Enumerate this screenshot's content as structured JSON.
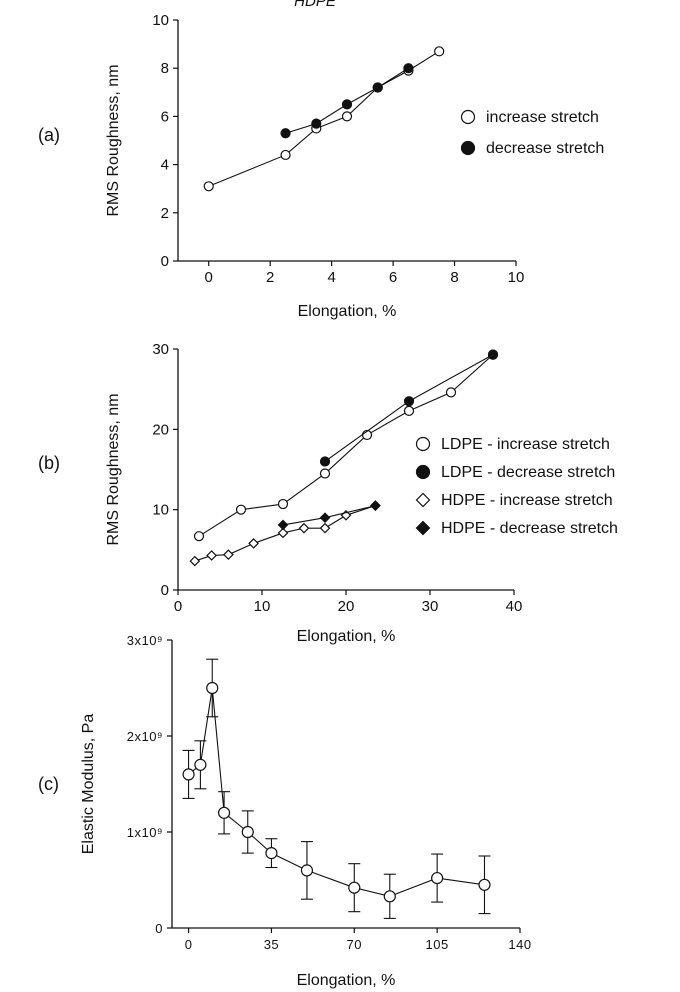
{
  "top_cut_text": "HDPE",
  "chart_data": [
    {
      "id": "a",
      "type": "scatter",
      "panel_label": "(a)",
      "xlabel": "Elongation, %",
      "ylabel": "RMS Roughness, nm",
      "xlim": [
        -1,
        10
      ],
      "ylim": [
        0,
        10
      ],
      "xticks": [
        0,
        2,
        4,
        6,
        8,
        10
      ],
      "xtick_labels": [
        "0",
        "2",
        "4",
        "6",
        "8",
        "10"
      ],
      "yticks": [
        0,
        2,
        4,
        6,
        8,
        10
      ],
      "ytick_labels": [
        "0",
        "2",
        "4",
        "6",
        "8",
        "10"
      ],
      "legend_position": "right",
      "series": [
        {
          "name": "increase stretch",
          "marker": "circle",
          "fill": "open",
          "x": [
            0,
            2.5,
            3.5,
            4.5,
            5.5,
            6.5,
            7.5
          ],
          "y": [
            3.1,
            4.4,
            5.5,
            6.0,
            7.2,
            7.9,
            8.7
          ]
        },
        {
          "name": "decrease stretch",
          "marker": "circle",
          "fill": "filled",
          "x": [
            2.5,
            3.5,
            4.5,
            5.5,
            6.5
          ],
          "y": [
            5.3,
            5.7,
            6.5,
            7.2,
            8.0
          ]
        }
      ]
    },
    {
      "id": "b",
      "type": "scatter",
      "panel_label": "(b)",
      "xlabel": "Elongation, %",
      "ylabel": "RMS Roughness, nm",
      "xlim": [
        0,
        40
      ],
      "ylim": [
        0,
        30
      ],
      "xticks": [
        0,
        10,
        20,
        30,
        40
      ],
      "xtick_labels": [
        "0",
        "10",
        "20",
        "30",
        "40"
      ],
      "yticks": [
        0,
        10,
        20,
        30
      ],
      "ytick_labels": [
        "0",
        "10",
        "20",
        "30"
      ],
      "legend_position": "right",
      "series": [
        {
          "name": "LDPE - increase stretch",
          "marker": "circle",
          "fill": "open",
          "x": [
            2.5,
            7.5,
            12.5,
            17.5,
            22.5,
            27.5,
            32.5,
            37.5
          ],
          "y": [
            6.7,
            10.0,
            10.7,
            14.5,
            19.3,
            22.3,
            24.6,
            29.3
          ]
        },
        {
          "name": "LDPE - decrease stretch",
          "marker": "circle",
          "fill": "filled",
          "x": [
            17.5,
            27.5,
            37.5
          ],
          "y": [
            16.0,
            23.5,
            29.3
          ]
        },
        {
          "name": "HDPE - increase stretch",
          "marker": "diamond",
          "fill": "open",
          "x": [
            2,
            4,
            6,
            9,
            12.5,
            15,
            17.5,
            20,
            23.5
          ],
          "y": [
            3.6,
            4.3,
            4.4,
            5.8,
            7.1,
            7.7,
            7.7,
            9.3,
            10.5
          ]
        },
        {
          "name": "HDPE - decrease stretch",
          "marker": "diamond",
          "fill": "filled",
          "x": [
            12.5,
            17.5,
            23.5
          ],
          "y": [
            8.1,
            9.0,
            10.5
          ]
        }
      ]
    },
    {
      "id": "c",
      "type": "scatter",
      "panel_label": "(c)",
      "xlabel": "Elongation, %",
      "ylabel": "Elastic Modulus, Pa",
      "xlim": [
        -7,
        140
      ],
      "ylim": [
        0,
        3000000000.0
      ],
      "xticks": [
        0,
        35,
        70,
        105,
        140
      ],
      "xtick_labels": [
        "0",
        "35",
        "70",
        "105",
        "140"
      ],
      "yticks": [
        0,
        1000000000.0,
        2000000000.0,
        3000000000.0
      ],
      "ytick_labels": [
        "0",
        "1x10⁹",
        "2x10⁹",
        "3x10⁹"
      ],
      "series": [
        {
          "name": "",
          "marker": "circle",
          "fill": "open",
          "error_bars": true,
          "x": [
            0,
            5,
            10,
            15,
            25,
            35,
            50,
            70,
            85,
            105,
            125
          ],
          "y": [
            1600000000.0,
            1700000000.0,
            2500000000.0,
            1200000000.0,
            1000000000.0,
            780000000.0,
            600000000.0,
            420000000.0,
            330000000.0,
            520000000.0,
            450000000.0
          ],
          "err": [
            250000000.0,
            250000000.0,
            300000000.0,
            220000000.0,
            220000000.0,
            150000000.0,
            300000000.0,
            250000000.0,
            230000000.0,
            250000000.0,
            300000000.0
          ]
        }
      ]
    }
  ]
}
